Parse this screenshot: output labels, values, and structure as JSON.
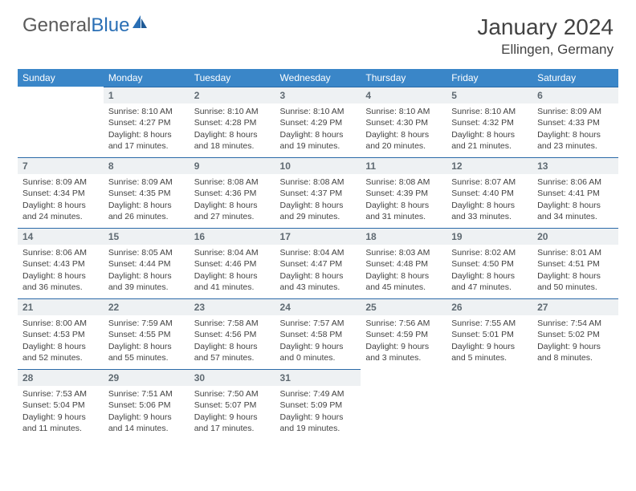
{
  "brand": {
    "part1": "General",
    "part2": "Blue"
  },
  "title": "January 2024",
  "location": "Ellingen, Germany",
  "header_bg": "#3a86c8",
  "header_fg": "#ffffff",
  "daynum_bg": "#eef1f3",
  "daynum_border": "#2b6aa8",
  "text_color": "#424242",
  "weekdays": [
    "Sunday",
    "Monday",
    "Tuesday",
    "Wednesday",
    "Thursday",
    "Friday",
    "Saturday"
  ],
  "weeks": [
    [
      {
        "n": "",
        "sr": "",
        "ss": "",
        "dl": ""
      },
      {
        "n": "1",
        "sr": "Sunrise: 8:10 AM",
        "ss": "Sunset: 4:27 PM",
        "dl": "Daylight: 8 hours and 17 minutes."
      },
      {
        "n": "2",
        "sr": "Sunrise: 8:10 AM",
        "ss": "Sunset: 4:28 PM",
        "dl": "Daylight: 8 hours and 18 minutes."
      },
      {
        "n": "3",
        "sr": "Sunrise: 8:10 AM",
        "ss": "Sunset: 4:29 PM",
        "dl": "Daylight: 8 hours and 19 minutes."
      },
      {
        "n": "4",
        "sr": "Sunrise: 8:10 AM",
        "ss": "Sunset: 4:30 PM",
        "dl": "Daylight: 8 hours and 20 minutes."
      },
      {
        "n": "5",
        "sr": "Sunrise: 8:10 AM",
        "ss": "Sunset: 4:32 PM",
        "dl": "Daylight: 8 hours and 21 minutes."
      },
      {
        "n": "6",
        "sr": "Sunrise: 8:09 AM",
        "ss": "Sunset: 4:33 PM",
        "dl": "Daylight: 8 hours and 23 minutes."
      }
    ],
    [
      {
        "n": "7",
        "sr": "Sunrise: 8:09 AM",
        "ss": "Sunset: 4:34 PM",
        "dl": "Daylight: 8 hours and 24 minutes."
      },
      {
        "n": "8",
        "sr": "Sunrise: 8:09 AM",
        "ss": "Sunset: 4:35 PM",
        "dl": "Daylight: 8 hours and 26 minutes."
      },
      {
        "n": "9",
        "sr": "Sunrise: 8:08 AM",
        "ss": "Sunset: 4:36 PM",
        "dl": "Daylight: 8 hours and 27 minutes."
      },
      {
        "n": "10",
        "sr": "Sunrise: 8:08 AM",
        "ss": "Sunset: 4:37 PM",
        "dl": "Daylight: 8 hours and 29 minutes."
      },
      {
        "n": "11",
        "sr": "Sunrise: 8:08 AM",
        "ss": "Sunset: 4:39 PM",
        "dl": "Daylight: 8 hours and 31 minutes."
      },
      {
        "n": "12",
        "sr": "Sunrise: 8:07 AM",
        "ss": "Sunset: 4:40 PM",
        "dl": "Daylight: 8 hours and 33 minutes."
      },
      {
        "n": "13",
        "sr": "Sunrise: 8:06 AM",
        "ss": "Sunset: 4:41 PM",
        "dl": "Daylight: 8 hours and 34 minutes."
      }
    ],
    [
      {
        "n": "14",
        "sr": "Sunrise: 8:06 AM",
        "ss": "Sunset: 4:43 PM",
        "dl": "Daylight: 8 hours and 36 minutes."
      },
      {
        "n": "15",
        "sr": "Sunrise: 8:05 AM",
        "ss": "Sunset: 4:44 PM",
        "dl": "Daylight: 8 hours and 39 minutes."
      },
      {
        "n": "16",
        "sr": "Sunrise: 8:04 AM",
        "ss": "Sunset: 4:46 PM",
        "dl": "Daylight: 8 hours and 41 minutes."
      },
      {
        "n": "17",
        "sr": "Sunrise: 8:04 AM",
        "ss": "Sunset: 4:47 PM",
        "dl": "Daylight: 8 hours and 43 minutes."
      },
      {
        "n": "18",
        "sr": "Sunrise: 8:03 AM",
        "ss": "Sunset: 4:48 PM",
        "dl": "Daylight: 8 hours and 45 minutes."
      },
      {
        "n": "19",
        "sr": "Sunrise: 8:02 AM",
        "ss": "Sunset: 4:50 PM",
        "dl": "Daylight: 8 hours and 47 minutes."
      },
      {
        "n": "20",
        "sr": "Sunrise: 8:01 AM",
        "ss": "Sunset: 4:51 PM",
        "dl": "Daylight: 8 hours and 50 minutes."
      }
    ],
    [
      {
        "n": "21",
        "sr": "Sunrise: 8:00 AM",
        "ss": "Sunset: 4:53 PM",
        "dl": "Daylight: 8 hours and 52 minutes."
      },
      {
        "n": "22",
        "sr": "Sunrise: 7:59 AM",
        "ss": "Sunset: 4:55 PM",
        "dl": "Daylight: 8 hours and 55 minutes."
      },
      {
        "n": "23",
        "sr": "Sunrise: 7:58 AM",
        "ss": "Sunset: 4:56 PM",
        "dl": "Daylight: 8 hours and 57 minutes."
      },
      {
        "n": "24",
        "sr": "Sunrise: 7:57 AM",
        "ss": "Sunset: 4:58 PM",
        "dl": "Daylight: 9 hours and 0 minutes."
      },
      {
        "n": "25",
        "sr": "Sunrise: 7:56 AM",
        "ss": "Sunset: 4:59 PM",
        "dl": "Daylight: 9 hours and 3 minutes."
      },
      {
        "n": "26",
        "sr": "Sunrise: 7:55 AM",
        "ss": "Sunset: 5:01 PM",
        "dl": "Daylight: 9 hours and 5 minutes."
      },
      {
        "n": "27",
        "sr": "Sunrise: 7:54 AM",
        "ss": "Sunset: 5:02 PM",
        "dl": "Daylight: 9 hours and 8 minutes."
      }
    ],
    [
      {
        "n": "28",
        "sr": "Sunrise: 7:53 AM",
        "ss": "Sunset: 5:04 PM",
        "dl": "Daylight: 9 hours and 11 minutes."
      },
      {
        "n": "29",
        "sr": "Sunrise: 7:51 AM",
        "ss": "Sunset: 5:06 PM",
        "dl": "Daylight: 9 hours and 14 minutes."
      },
      {
        "n": "30",
        "sr": "Sunrise: 7:50 AM",
        "ss": "Sunset: 5:07 PM",
        "dl": "Daylight: 9 hours and 17 minutes."
      },
      {
        "n": "31",
        "sr": "Sunrise: 7:49 AM",
        "ss": "Sunset: 5:09 PM",
        "dl": "Daylight: 9 hours and 19 minutes."
      },
      {
        "n": "",
        "sr": "",
        "ss": "",
        "dl": ""
      },
      {
        "n": "",
        "sr": "",
        "ss": "",
        "dl": ""
      },
      {
        "n": "",
        "sr": "",
        "ss": "",
        "dl": ""
      }
    ]
  ]
}
